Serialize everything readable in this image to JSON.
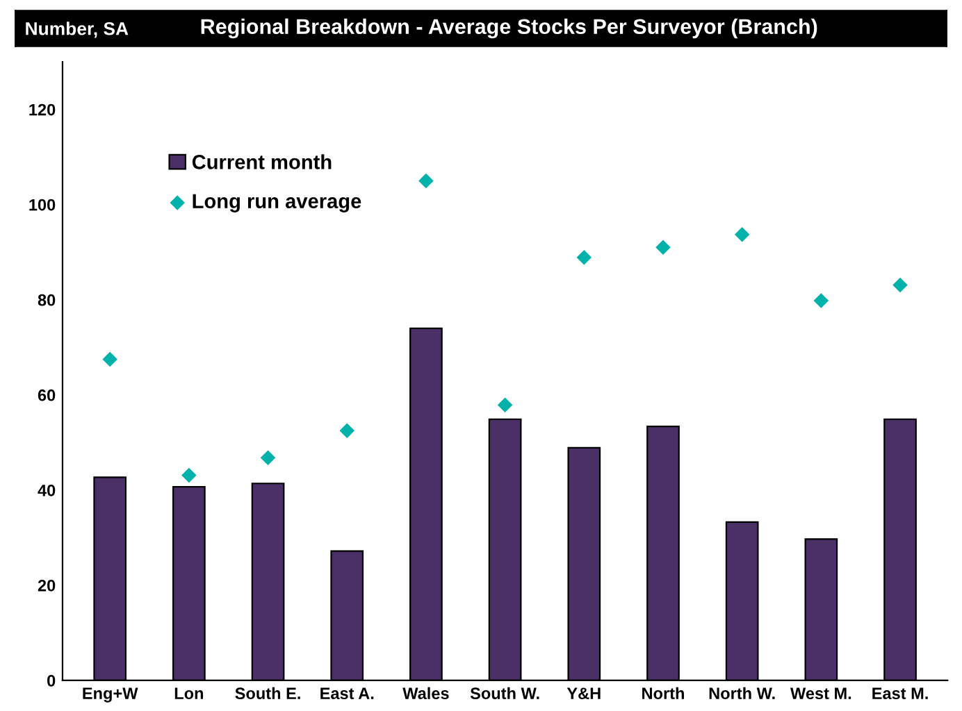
{
  "chart_data": {
    "type": "bar",
    "title": "Regional Breakdown - Average Stocks Per Surveyor (Branch)",
    "ylabel": "Number, SA",
    "categories": [
      "Eng+W",
      "Lon",
      "South E.",
      "East A.",
      "Wales",
      "South W.",
      "Y&H",
      "North",
      "North W.",
      "West M.",
      "East M."
    ],
    "series": [
      {
        "name": "Current month",
        "color": "#4b3068",
        "values": [
          42.7,
          40.7,
          41.4,
          27.2,
          74.0,
          54.9,
          48.9,
          53.4,
          33.3,
          29.7,
          54.9
        ]
      },
      {
        "name": "Long run average",
        "type": "scatter",
        "marker": "diamond",
        "color": "#00b2a9",
        "values": [
          67.5,
          43.1,
          46.8,
          52.5,
          105,
          57.9,
          88.9,
          91.0,
          93.7,
          79.8,
          83.1
        ]
      }
    ],
    "ylim": [
      0,
      130
    ],
    "yticks": [
      0,
      20,
      40,
      60,
      80,
      100,
      120
    ],
    "grid": false,
    "legend": "top left"
  }
}
